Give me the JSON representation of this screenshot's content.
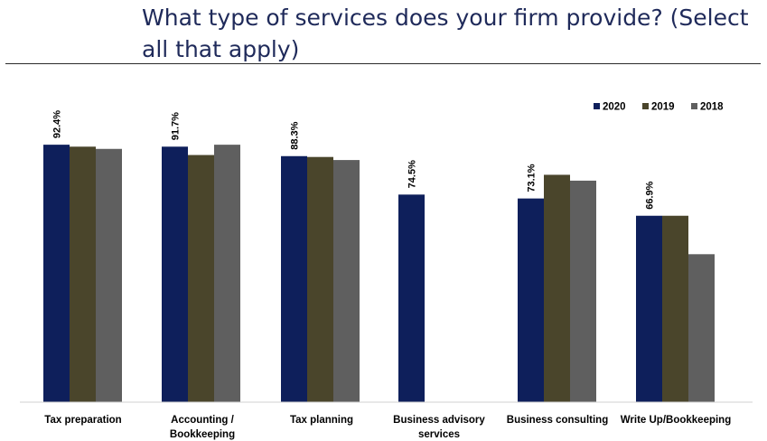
{
  "chart_data": {
    "type": "bar",
    "title": "What type of services does your firm provide? (Select all that apply)",
    "categories": [
      [
        "Tax preparation"
      ],
      [
        "Accounting /",
        "Bookkeeping"
      ],
      [
        "Tax planning"
      ],
      [
        "Business advisory",
        "services"
      ],
      [
        "Business consulting"
      ],
      [
        "Write Up/Bookkeeping"
      ]
    ],
    "series": [
      {
        "name": "2020",
        "color": "#0e1f5b",
        "values": [
          92.4,
          91.7,
          88.3,
          74.5,
          73.1,
          66.9
        ]
      },
      {
        "name": "2019",
        "color": "#4a452b",
        "values": [
          91.7,
          88.7,
          88.0,
          null,
          81.6,
          66.9
        ]
      },
      {
        "name": "2018",
        "color": "#5f5f5f",
        "values": [
          90.9,
          92.4,
          86.9,
          null,
          79.5,
          53.1
        ]
      }
    ],
    "data_labels": [
      {
        "series": 0,
        "category": 0,
        "text": "92.4%"
      },
      {
        "series": 0,
        "category": 1,
        "text": "91.7%"
      },
      {
        "series": 0,
        "category": 2,
        "text": "88.3%"
      },
      {
        "series": 0,
        "category": 3,
        "text": "74.5%"
      },
      {
        "series": 0,
        "category": 4,
        "text": "73.1%"
      },
      {
        "series": 0,
        "category": 5,
        "text": "66.9%"
      }
    ],
    "ylim": [
      0,
      100
    ],
    "grid": false,
    "legend": "top-right",
    "xlabel": "",
    "ylabel": ""
  }
}
